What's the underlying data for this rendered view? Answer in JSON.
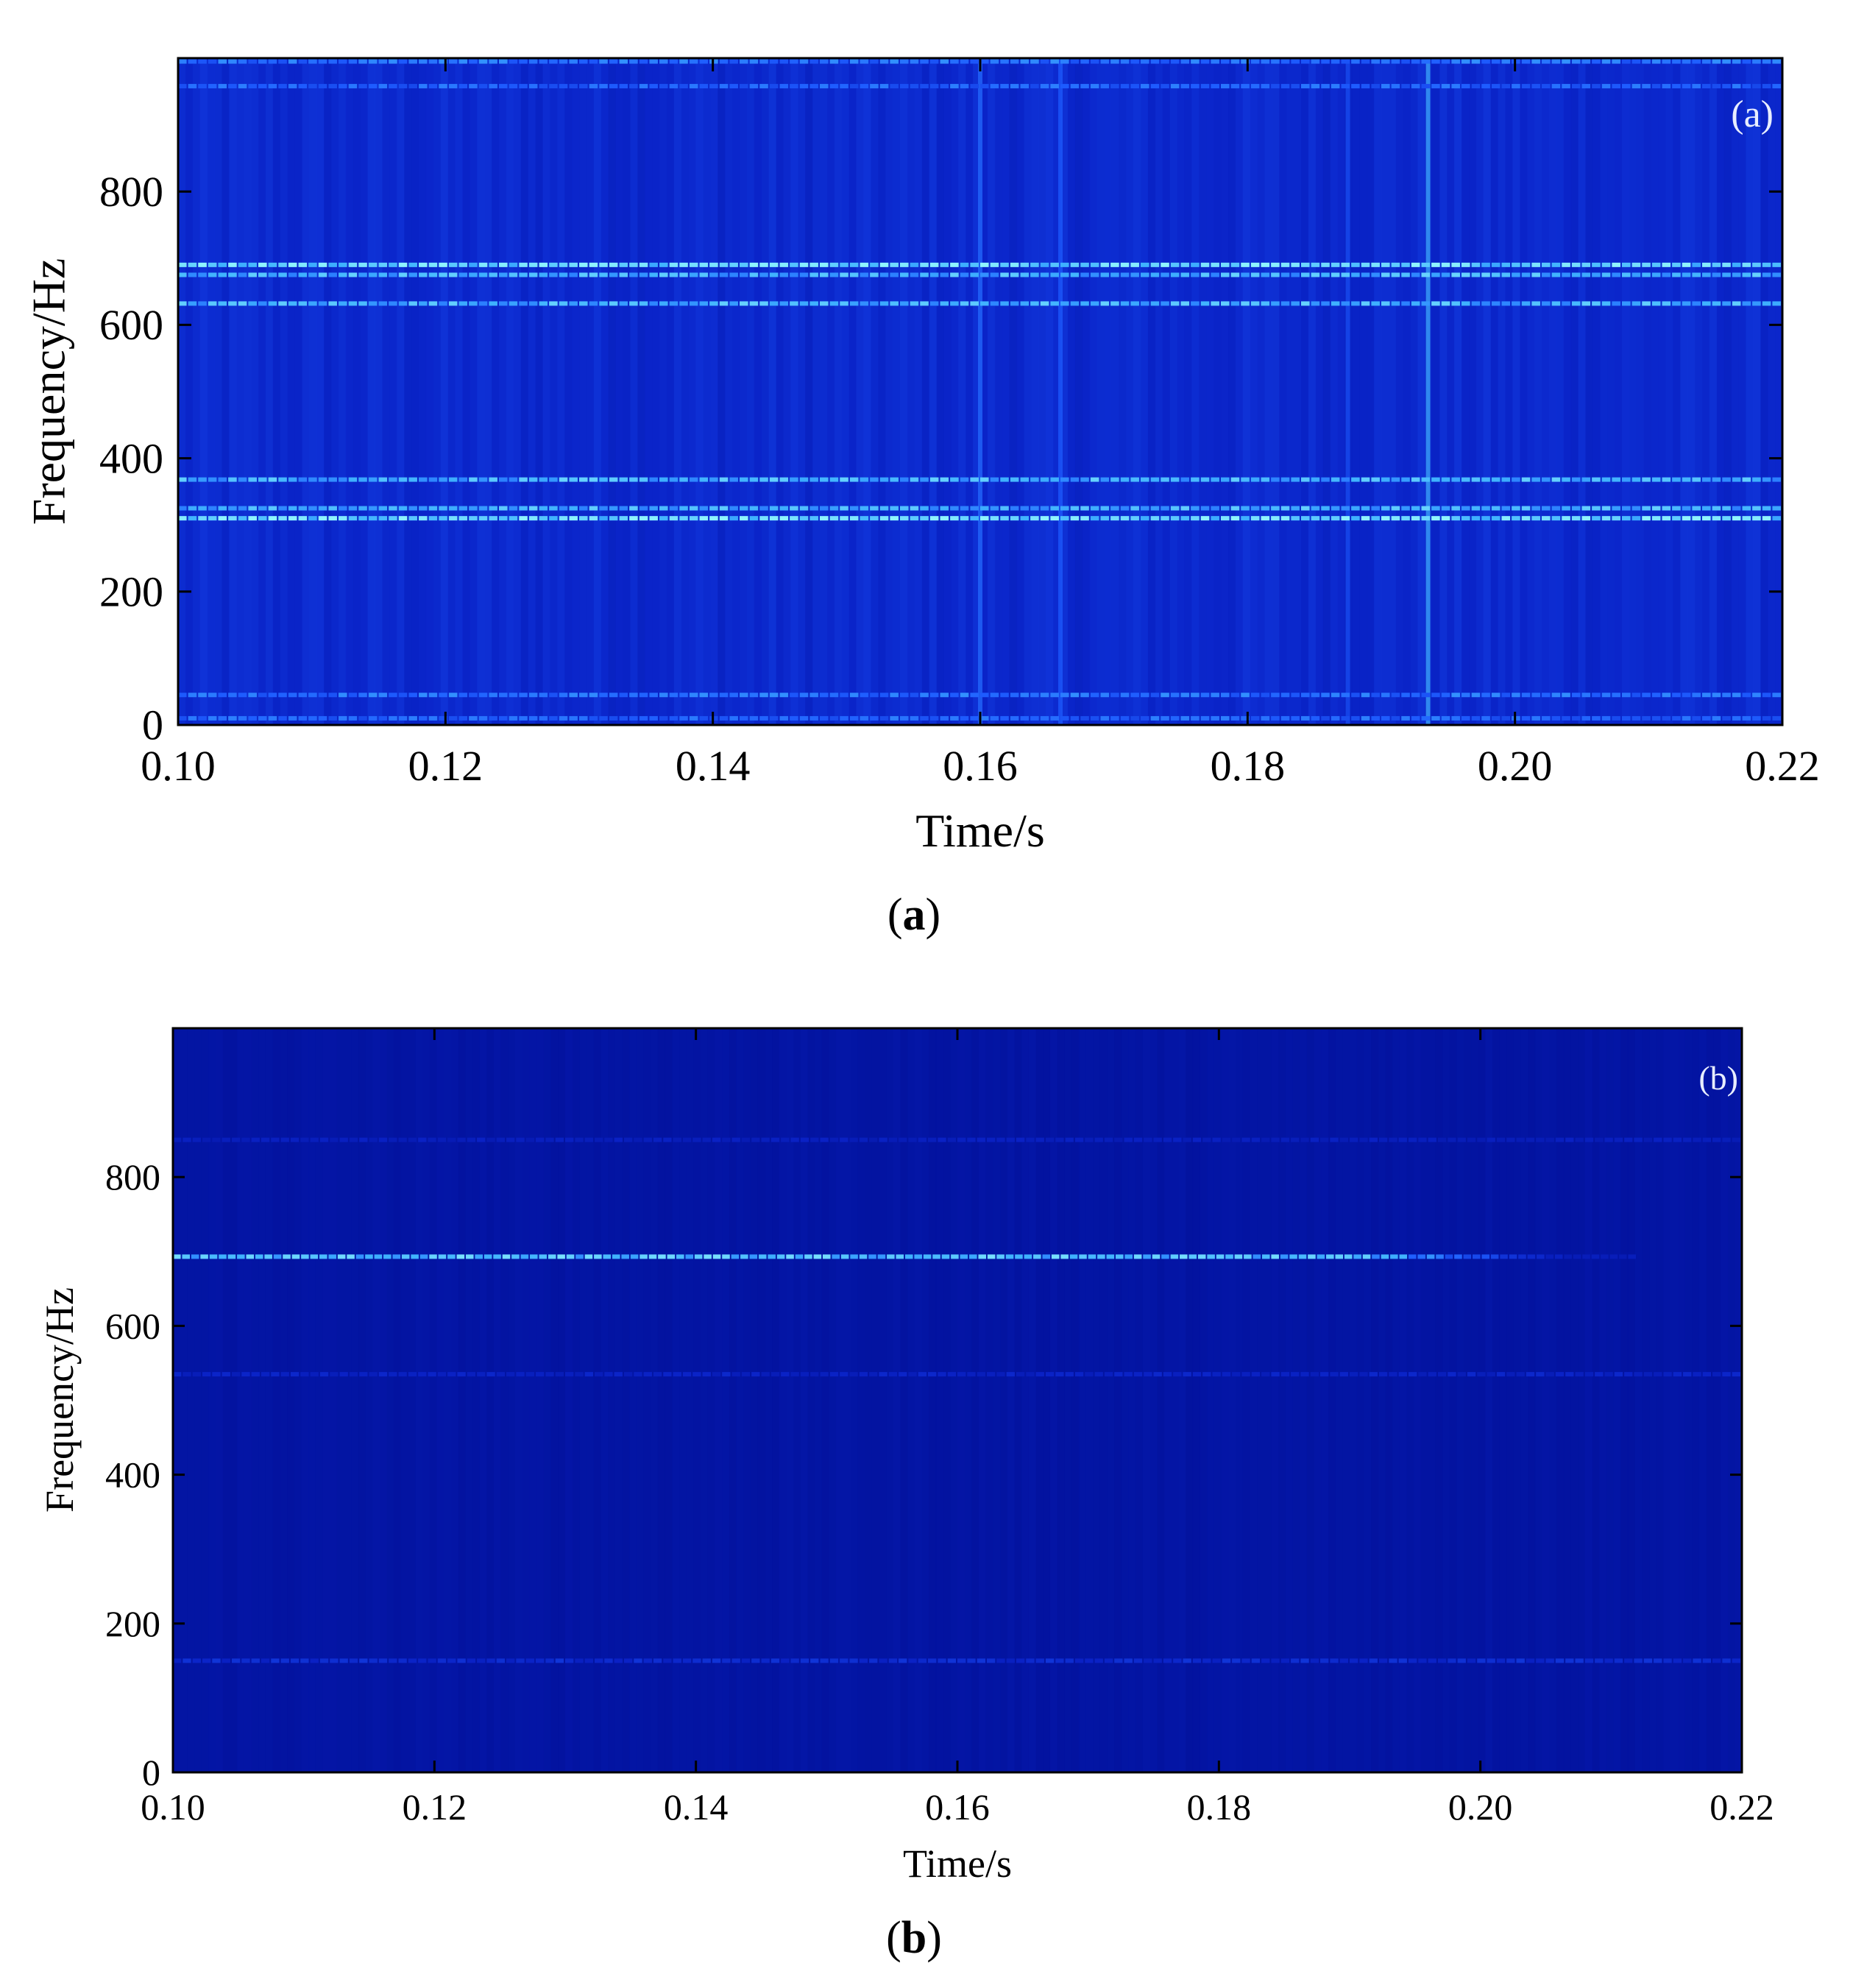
{
  "figure": {
    "captions": [
      {
        "open": "(",
        "letter": "a",
        "close": ")"
      },
      {
        "open": "(",
        "letter": "b",
        "close": ")"
      }
    ]
  },
  "chart_data": [
    {
      "type": "heatmap",
      "panel_label": "(a)",
      "xlabel": "Time/s",
      "ylabel": "Frequency/Hz",
      "xlim": [
        0.1,
        0.22
      ],
      "ylim": [
        0,
        1000
      ],
      "x_ticks": [
        "0.10",
        "0.12",
        "0.14",
        "0.16",
        "0.18",
        "0.20",
        "0.22"
      ],
      "y_ticks": [
        "0",
        "200",
        "400",
        "600",
        "800"
      ],
      "colormap": [
        "#000c8c",
        "#0a22c6",
        "#1e5cff",
        "#3fb2ff",
        "#8ff4ff"
      ],
      "background_intensity": 0.28,
      "bands": [
        {
          "f": 10,
          "intensity": 0.55
        },
        {
          "f": 45,
          "intensity": 0.6
        },
        {
          "f": 310,
          "intensity": 0.95
        },
        {
          "f": 325,
          "intensity": 0.8
        },
        {
          "f": 368,
          "intensity": 0.8
        },
        {
          "f": 632,
          "intensity": 0.8
        },
        {
          "f": 675,
          "intensity": 0.8
        },
        {
          "f": 690,
          "intensity": 0.95
        },
        {
          "f": 958,
          "intensity": 0.55
        },
        {
          "f": 995,
          "intensity": 0.6
        }
      ],
      "vertical_lines": [
        {
          "t": 0.16,
          "intensity": 0.55
        },
        {
          "t": 0.166,
          "intensity": 0.5
        },
        {
          "t": 0.1875,
          "intensity": 0.45
        },
        {
          "t": 0.1935,
          "intensity": 0.75
        }
      ]
    },
    {
      "type": "heatmap",
      "panel_label": "(b)",
      "xlabel": "Time/s",
      "ylabel": "Frequency/Hz",
      "xlim": [
        0.1,
        0.22
      ],
      "ylim": [
        0,
        1000
      ],
      "x_ticks": [
        "0.10",
        "0.12",
        "0.14",
        "0.16",
        "0.18",
        "0.20",
        "0.22"
      ],
      "y_ticks": [
        "0",
        "200",
        "400",
        "600",
        "800"
      ],
      "colormap": [
        "#000c8c",
        "#0a22c6",
        "#1e5cff",
        "#3fb2ff",
        "#8ff4ff"
      ],
      "background_intensity": 0.1,
      "bands": [
        {
          "f": 150,
          "intensity": 0.3
        },
        {
          "f": 535,
          "intensity": 0.25
        },
        {
          "f": 850,
          "intensity": 0.22
        },
        {
          "f": 693,
          "intensity": 0.85,
          "t_start": 0.1,
          "t_end": 0.212,
          "fade_from": 0.19
        }
      ],
      "vertical_lines": []
    }
  ]
}
